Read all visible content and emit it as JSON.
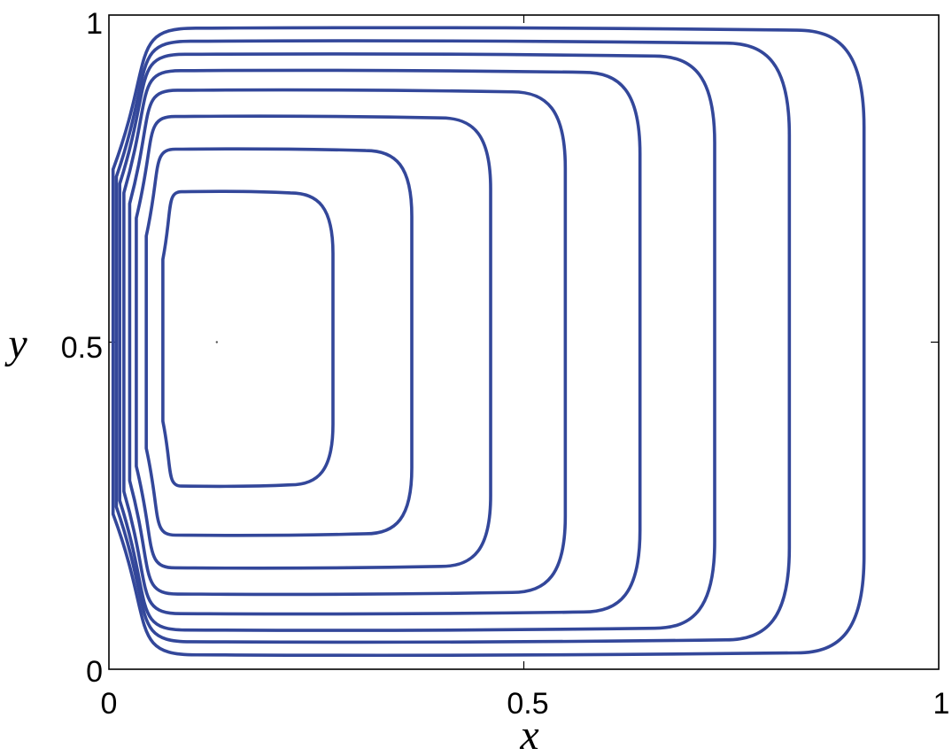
{
  "chart_data": {
    "type": "line",
    "subtype": "contour",
    "title": "",
    "xlabel": "x",
    "ylabel": "y",
    "xlim": [
      0,
      1
    ],
    "ylim": [
      0,
      1
    ],
    "x_ticks": [
      0,
      0.5,
      1
    ],
    "x_tick_labels": [
      "0",
      "0.5",
      "1"
    ],
    "y_ticks": [
      0,
      0.5,
      1
    ],
    "y_tick_labels": [
      "0",
      "0.5",
      "1"
    ],
    "grid": false,
    "legend": "none",
    "line_color": "#33479a",
    "center_point": [
      0.13,
      0.5
    ],
    "series": [
      {
        "right_x": 0.27,
        "top_y": 0.73,
        "bottom_y": 0.28,
        "left_x": 0.065
      },
      {
        "right_x": 0.365,
        "top_y": 0.795,
        "bottom_y": 0.205,
        "left_x": 0.045
      },
      {
        "right_x": 0.46,
        "top_y": 0.845,
        "bottom_y": 0.155,
        "left_x": 0.033
      },
      {
        "right_x": 0.55,
        "top_y": 0.885,
        "bottom_y": 0.115,
        "left_x": 0.025
      },
      {
        "right_x": 0.64,
        "top_y": 0.915,
        "bottom_y": 0.085,
        "left_x": 0.018
      },
      {
        "right_x": 0.73,
        "top_y": 0.94,
        "bottom_y": 0.06,
        "left_x": 0.013
      },
      {
        "right_x": 0.82,
        "top_y": 0.96,
        "bottom_y": 0.042,
        "left_x": 0.009
      },
      {
        "right_x": 0.91,
        "top_y": 0.98,
        "bottom_y": 0.022,
        "left_x": 0.005
      }
    ]
  }
}
